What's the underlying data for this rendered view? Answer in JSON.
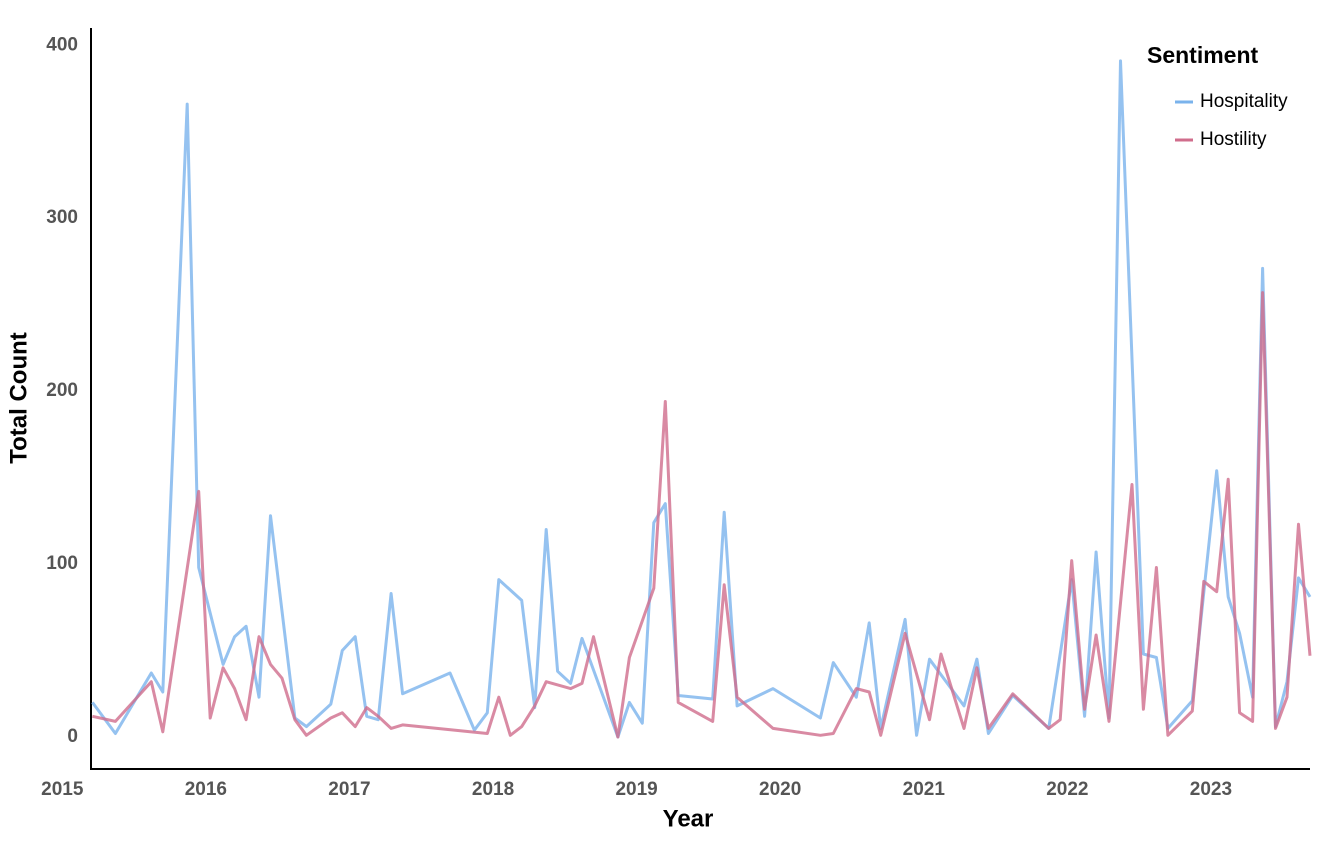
{
  "chart_data": {
    "type": "line",
    "x_label": "Year",
    "y_label": "Total Count",
    "legend_title": "Sentiment",
    "legend": "top-right",
    "grid": false,
    "xlim": [
      2015.2,
      2023.69
    ],
    "xticks": [
      2015,
      2016,
      2017,
      2018,
      2019,
      2020,
      2021,
      2022,
      2023
    ],
    "ylim": [
      -18.5,
      410
    ],
    "yticks": [
      0,
      100,
      200,
      300,
      400
    ],
    "series": [
      {
        "name": "Hospitality",
        "color": "#7ab3ec",
        "x": [
          2015.21,
          2015.37,
          2015.62,
          2015.7,
          2015.87,
          2015.95,
          2016.12,
          2016.2,
          2016.28,
          2016.37,
          2016.45,
          2016.62,
          2016.7,
          2016.87,
          2016.95,
          2017.04,
          2017.12,
          2017.2,
          2017.29,
          2017.37,
          2017.7,
          2017.87,
          2017.96,
          2018.04,
          2018.2,
          2018.29,
          2018.37,
          2018.45,
          2018.54,
          2018.62,
          2018.87,
          2018.95,
          2019.04,
          2019.12,
          2019.2,
          2019.29,
          2019.53,
          2019.61,
          2019.7,
          2019.95,
          2020.28,
          2020.37,
          2020.53,
          2020.62,
          2020.7,
          2020.87,
          2020.95,
          2021.04,
          2021.28,
          2021.37,
          2021.45,
          2021.62,
          2021.87,
          2022.03,
          2022.12,
          2022.2,
          2022.29,
          2022.37,
          2022.53,
          2022.62,
          2022.7,
          2022.87,
          2023.04,
          2023.12,
          2023.2,
          2023.29,
          2023.36,
          2023.45,
          2023.53,
          2023.61,
          2023.69
        ],
        "values": [
          20,
          2,
          37,
          26,
          366,
          98,
          42,
          58,
          64,
          23,
          128,
          11,
          6,
          19,
          50,
          58,
          12,
          10,
          83,
          25,
          37,
          4,
          14,
          91,
          79,
          17,
          120,
          38,
          31,
          57,
          0,
          20,
          8,
          124,
          135,
          24,
          22,
          130,
          18,
          28,
          11,
          43,
          23,
          66,
          5,
          68,
          1,
          45,
          18,
          45,
          2,
          24,
          5,
          91,
          12,
          107,
          11,
          391,
          48,
          46,
          5,
          21,
          154,
          81,
          60,
          23,
          271,
          6,
          32,
          92,
          81
        ]
      },
      {
        "name": "Hostility",
        "color": "#d06d8c",
        "x": [
          2015.21,
          2015.37,
          2015.62,
          2015.7,
          2015.95,
          2016.03,
          2016.12,
          2016.2,
          2016.28,
          2016.37,
          2016.45,
          2016.53,
          2016.62,
          2016.7,
          2016.87,
          2016.95,
          2017.04,
          2017.12,
          2017.2,
          2017.29,
          2017.37,
          2017.96,
          2018.04,
          2018.12,
          2018.2,
          2018.29,
          2018.37,
          2018.54,
          2018.62,
          2018.7,
          2018.87,
          2018.95,
          2019.12,
          2019.2,
          2019.29,
          2019.53,
          2019.61,
          2019.7,
          2019.95,
          2020.28,
          2020.37,
          2020.53,
          2020.62,
          2020.7,
          2020.87,
          2021.04,
          2021.12,
          2021.28,
          2021.37,
          2021.45,
          2021.62,
          2021.87,
          2021.95,
          2022.03,
          2022.12,
          2022.2,
          2022.29,
          2022.45,
          2022.53,
          2022.62,
          2022.7,
          2022.87,
          2022.95,
          2023.04,
          2023.12,
          2023.2,
          2023.29,
          2023.36,
          2023.45,
          2023.53,
          2023.61,
          2023.69
        ],
        "values": [
          12,
          9,
          32,
          3,
          142,
          11,
          40,
          28,
          10,
          58,
          42,
          34,
          10,
          1,
          11,
          14,
          6,
          17,
          12,
          5,
          7,
          2,
          23,
          1,
          6,
          18,
          32,
          28,
          31,
          58,
          0,
          46,
          86,
          194,
          20,
          9,
          88,
          23,
          5,
          1,
          2,
          28,
          26,
          1,
          60,
          10,
          48,
          5,
          40,
          5,
          25,
          5,
          10,
          102,
          16,
          59,
          9,
          146,
          16,
          98,
          1,
          15,
          90,
          84,
          149,
          14,
          9,
          257,
          5,
          23,
          123,
          47
        ]
      }
    ]
  }
}
